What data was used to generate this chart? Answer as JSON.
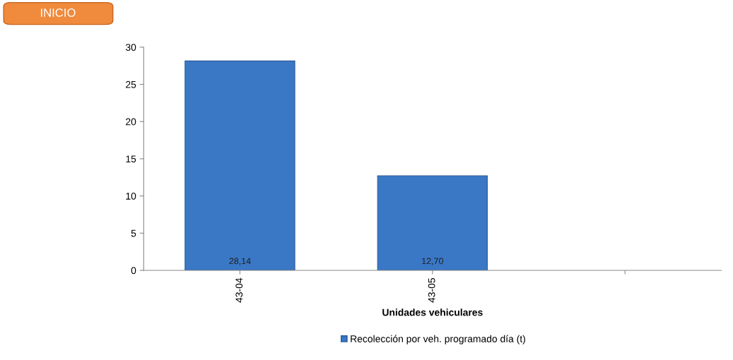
{
  "chart_data": {
    "type": "bar",
    "categories": [
      "43-04",
      "43-05",
      null
    ],
    "series": [
      {
        "name": "Recolección por veh. programado día (t)",
        "color": "#3a78c6",
        "values": [
          28.14,
          12.7,
          null
        ],
        "value_labels": [
          "28,14",
          "12,70",
          null
        ]
      }
    ],
    "xlabel": "Unidades vehiculares",
    "ylim": [
      0,
      30
    ],
    "yticks": [
      0,
      5,
      10,
      15,
      20,
      25,
      30
    ],
    "grid": false,
    "legend": "bottom",
    "annotations": [
      "INICIO"
    ]
  }
}
